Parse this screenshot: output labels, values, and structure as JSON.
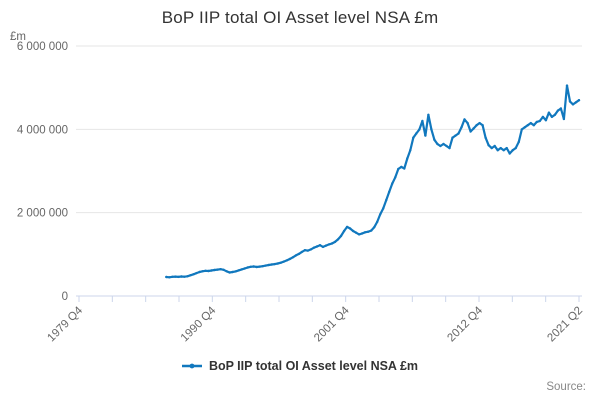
{
  "title": "BoP IIP total OI Asset level NSA £m",
  "legend": {
    "label": "BoP IIP total OI Asset level NSA £m"
  },
  "source_label": "Source:",
  "colors": {
    "line": "#1178be",
    "grid": "#e6e6e6",
    "axis": "#ccd6eb",
    "tick_label": "#666666",
    "axis_title": "#666666",
    "title": "#333333",
    "legend_text": "#333333",
    "source_text": "#888888",
    "background": "#ffffff"
  },
  "chart_data": {
    "type": "line",
    "title": "BoP IIP total OI Asset level NSA £m",
    "xlabel": "",
    "ylabel": "£m",
    "ylim": [
      0,
      6000000
    ],
    "grid": "horizontal-only",
    "legend_position": "bottom-center",
    "yticks": [
      {
        "value": 0,
        "label": "0"
      },
      {
        "value": 2000000,
        "label": "2 000 000"
      },
      {
        "value": 4000000,
        "label": "4 000 000"
      },
      {
        "value": 6000000,
        "label": "6 000 000"
      }
    ],
    "x_quarter_range": {
      "start": "1979 Q4",
      "end": "2021 Q2",
      "total_quarters": 166
    },
    "xticks": {
      "minor_tick_count": 16,
      "labeled": [
        {
          "index": 0,
          "label": "1979 Q4"
        },
        {
          "index": 4,
          "label": "1990 Q4"
        },
        {
          "index": 8,
          "label": "2001 Q4"
        },
        {
          "index": 12,
          "label": "2012 Q4"
        },
        {
          "index": 15,
          "label": "2021 Q2"
        }
      ]
    },
    "series": [
      {
        "name": "BoP IIP total OI Asset level NSA £m",
        "frequency": "quarterly",
        "start": "1987 Q1",
        "start_quarter_index": 29,
        "values": [
          455000,
          450000,
          460000,
          466000,
          459000,
          468000,
          463000,
          473000,
          496000,
          521000,
          549000,
          576000,
          593000,
          604000,
          599000,
          613000,
          623000,
          634000,
          644000,
          629000,
          593000,
          564000,
          575000,
          590000,
          615000,
          639000,
          660000,
          685000,
          700000,
          707000,
          695000,
          705000,
          715000,
          730000,
          745000,
          755000,
          765000,
          780000,
          800000,
          825000,
          854000,
          889000,
          929000,
          974000,
          1011000,
          1059000,
          1099000,
          1089000,
          1119000,
          1159000,
          1189000,
          1219000,
          1179000,
          1209000,
          1239000,
          1259000,
          1299000,
          1359000,
          1439000,
          1559000,
          1659000,
          1619000,
          1559000,
          1519000,
          1479000,
          1499000,
          1529000,
          1544000,
          1569000,
          1649000,
          1779000,
          1959000,
          2099000,
          2299000,
          2499000,
          2699000,
          2849000,
          3049000,
          3099000,
          3059000,
          3299000,
          3499000,
          3799000,
          3899000,
          3999000,
          4199000,
          3849000,
          4349000,
          3999000,
          3749000,
          3649000,
          3599000,
          3649000,
          3599000,
          3549000,
          3799000,
          3849000,
          3899000,
          4049000,
          4239000,
          4149000,
          3949000,
          4019000,
          4099000,
          4149000,
          4099000,
          3799000,
          3619000,
          3549000,
          3599000,
          3499000,
          3549000,
          3499000,
          3549000,
          3419000,
          3499000,
          3549000,
          3699000,
          3999000,
          4049000,
          4099000,
          4149000,
          4099000,
          4179000,
          4199000,
          4299000,
          4219000,
          4399000,
          4299000,
          4349000,
          4449000,
          4499000,
          4249000,
          5049000,
          4669000,
          4599000,
          4649000,
          4699000
        ]
      }
    ]
  }
}
